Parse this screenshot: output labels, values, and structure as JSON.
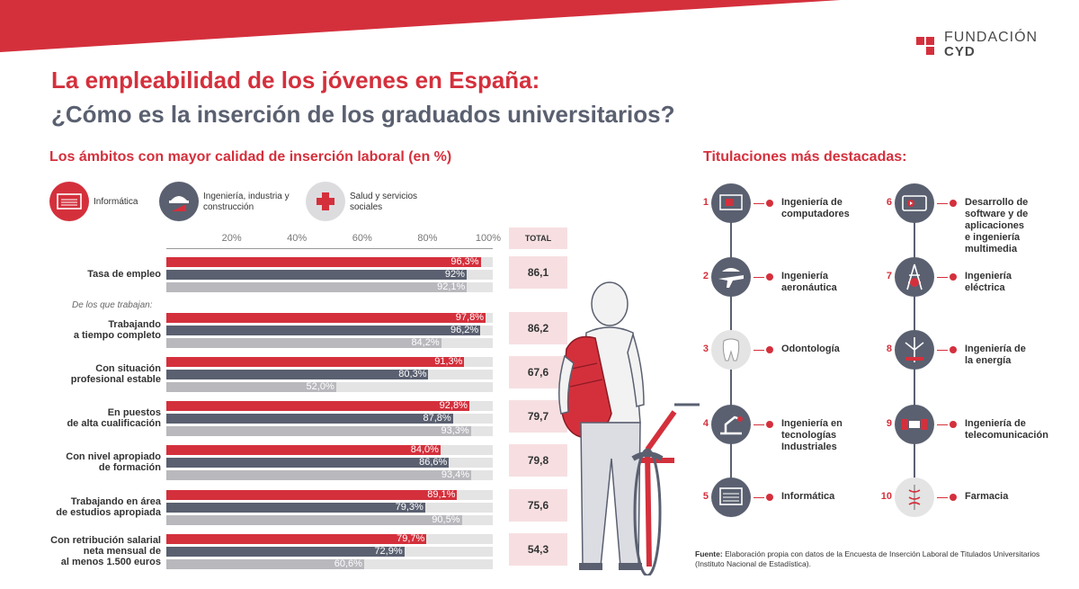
{
  "header": {
    "title_line1": "La empleabilidad de los jóvenes en España:",
    "title_line2": "¿Cómo es la inserción de los graduados universitarios?",
    "logo_line1": "FUNDACIÓN",
    "logo_line2": "CYD"
  },
  "colors": {
    "brand_red": "#d4303c",
    "slate": "#5a6070",
    "light_gray": "#b8b8bd",
    "track": "#e4e4e4",
    "total_bg": "#f7dfe1"
  },
  "chart_section": {
    "title": "Los ámbitos con mayor calidad de inserción laboral (en %)",
    "legend": [
      {
        "label": "Informática",
        "icon": "computer-icon"
      },
      {
        "label": "Ingeniería, industria y construcción",
        "icon": "helmet-icon"
      },
      {
        "label": "Salud y servicios sociales",
        "icon": "medical-cross-icon"
      }
    ],
    "total_header": "TOTAL",
    "sub_note": "De los que trabajan:"
  },
  "chart_data": {
    "type": "bar",
    "orientation": "horizontal",
    "title": "Los ámbitos con mayor calidad de inserción laboral (en %)",
    "xlim": [
      0,
      100
    ],
    "x_ticks": [
      "20%",
      "40%",
      "60%",
      "80%",
      "100%"
    ],
    "series_names": [
      "Informática",
      "Ingeniería, industria y construcción",
      "Salud y servicios sociales"
    ],
    "categories": [
      "Tasa de empleo",
      "Trabajando a tiempo completo",
      "Con situación profesional estable",
      "En puestos de alta cualificación",
      "Con nivel apropiado de formación",
      "Trabajando en área de estudios apropiada",
      "Con retribución salarial neta mensual de al menos 1.500 euros"
    ],
    "rows": [
      {
        "label": [
          "Tasa de empleo"
        ],
        "values": [
          96.3,
          92,
          92.1
        ],
        "labels": [
          "96,3%",
          "92%",
          "92,1%"
        ],
        "total": "86,1"
      },
      {
        "label": [
          "Trabajando",
          "a tiempo completo"
        ],
        "values": [
          97.8,
          96.2,
          84.2
        ],
        "labels": [
          "97,8%",
          "96,2%",
          "84,2%"
        ],
        "total": "86,2"
      },
      {
        "label": [
          "Con situación",
          "profesional estable"
        ],
        "values": [
          91.3,
          80.3,
          52.0
        ],
        "labels": [
          "91,3%",
          "80,3%",
          "52,0%"
        ],
        "total": "67,6"
      },
      {
        "label": [
          "En puestos",
          "de alta cualificación"
        ],
        "values": [
          92.8,
          87.8,
          93.3
        ],
        "labels": [
          "92,8%",
          "87,8%",
          "93,3%"
        ],
        "total": "79,7"
      },
      {
        "label": [
          "Con nivel apropiado",
          "de formación"
        ],
        "values": [
          84.0,
          86.6,
          93.4
        ],
        "labels": [
          "84,0%",
          "86,6%",
          "93,4%"
        ],
        "total": "79,8"
      },
      {
        "label": [
          "Trabajando en área",
          "de estudios apropiada"
        ],
        "values": [
          89.1,
          79.3,
          90.5
        ],
        "labels": [
          "89,1%",
          "79,3%",
          "90,5%"
        ],
        "total": "75,6"
      },
      {
        "label": [
          "Con retribución salarial",
          "neta mensual de",
          "al menos 1.500 euros"
        ],
        "values": [
          79.7,
          72.9,
          60.6
        ],
        "labels": [
          "79,7%",
          "72,9%",
          "60,6%"
        ],
        "total": "54,3"
      }
    ]
  },
  "degrees_section": {
    "title": "Titulaciones más destacadas:",
    "items": [
      {
        "num": "1",
        "label": [
          "Ingeniería de",
          "computadores"
        ],
        "icon": "computer-chip-icon"
      },
      {
        "num": "2",
        "label": [
          "Ingeniería",
          "aeronáutica"
        ],
        "icon": "airplane-icon"
      },
      {
        "num": "3",
        "label": [
          "Odontología"
        ],
        "icon": "tooth-icon"
      },
      {
        "num": "4",
        "label": [
          "Ingeniería en",
          "tecnologías",
          "Industriales"
        ],
        "icon": "industrial-robot-icon"
      },
      {
        "num": "5",
        "label": [
          "Informática"
        ],
        "icon": "computer-icon"
      },
      {
        "num": "6",
        "label": [
          "Desarrollo de",
          "software y de",
          "aplicaciones",
          "e ingeniería",
          "multimedia"
        ],
        "icon": "media-player-icon"
      },
      {
        "num": "7",
        "label": [
          "Ingeniería",
          "eléctrica"
        ],
        "icon": "electric-tower-icon"
      },
      {
        "num": "8",
        "label": [
          "Ingeniería de",
          "la energía"
        ],
        "icon": "wind-turbine-icon"
      },
      {
        "num": "9",
        "label": [
          "Ingeniería de",
          "telecomunicación"
        ],
        "icon": "satellite-icon"
      },
      {
        "num": "10",
        "label": [
          "Farmacia"
        ],
        "icon": "caduceus-icon"
      }
    ]
  },
  "source": {
    "label": "Fuente:",
    "text": "Elaboración propia con datos de la Encuesta de Inserción Laboral de Titulados Universitarios (Instituto Nacional de Estadística)."
  }
}
